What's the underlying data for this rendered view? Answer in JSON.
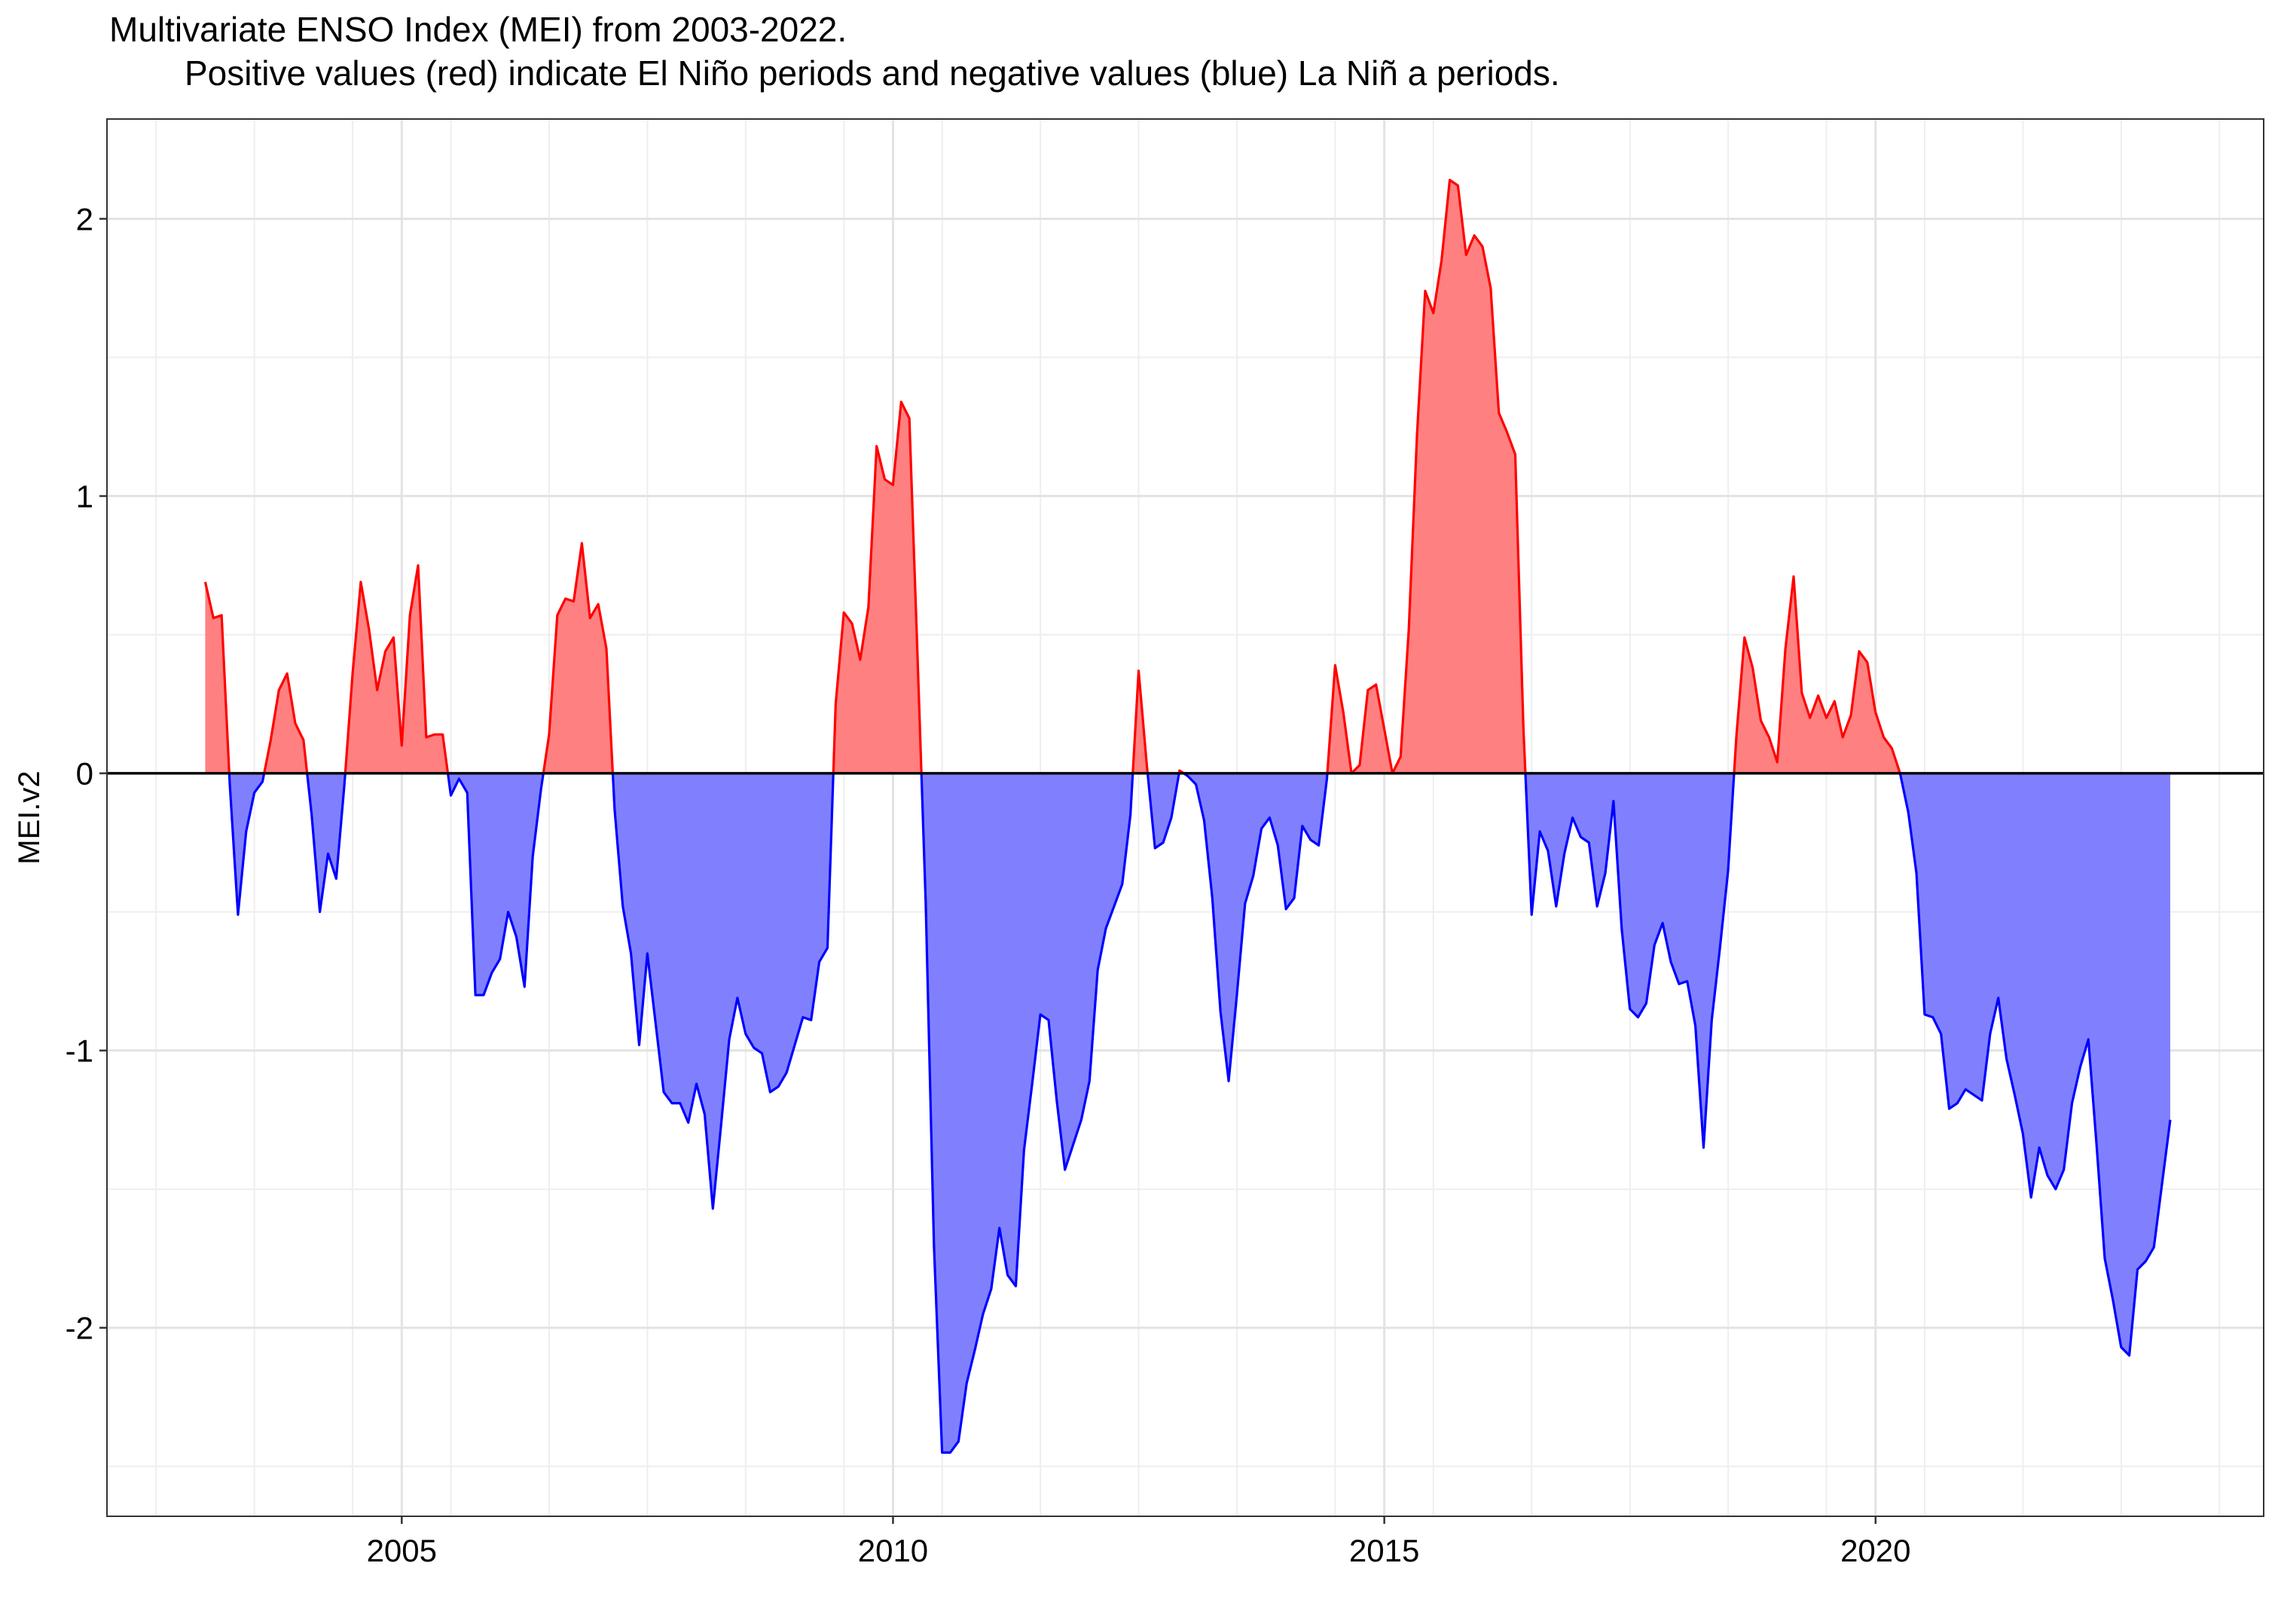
{
  "chart_data": {
    "type": "area",
    "title": "Multivariate ENSO Index (MEI) from 2003-2022.",
    "subtitle": "Positive values (red) indicate El Niño periods and negative values (blue) La Niñ a periods.",
    "xlabel": "",
    "ylabel": "MEI.v2",
    "xlim": [
      2002.0,
      2023.95
    ],
    "ylim": [
      -2.68,
      2.36
    ],
    "x_ticks": [
      2005,
      2010,
      2015,
      2020
    ],
    "x_tick_labels": [
      "2005",
      "2010",
      "2015",
      "2020"
    ],
    "y_ticks": [
      -2,
      -1,
      0,
      1,
      2
    ],
    "y_tick_labels": [
      "-2",
      "-1",
      "0",
      "1",
      "2"
    ],
    "grid": true,
    "legend": "none",
    "colors": {
      "positive_fill": "#ff8080",
      "positive_line": "#ff0000",
      "negative_fill": "#8080ff",
      "negative_line": "#0000ff",
      "zero_line": "#000000"
    },
    "x_start": 2003.0,
    "x_step": 0.08333,
    "series": [
      {
        "name": "MEI.v2",
        "values": [
          0.69,
          0.56,
          0.57,
          -0.04,
          -0.51,
          -0.21,
          -0.07,
          -0.03,
          0.12,
          0.3,
          0.36,
          0.18,
          0.12,
          -0.15,
          -0.5,
          -0.29,
          -0.38,
          -0.04,
          0.36,
          0.69,
          0.52,
          0.3,
          0.44,
          0.49,
          0.1,
          0.57,
          0.75,
          0.13,
          0.14,
          0.14,
          -0.08,
          -0.02,
          -0.07,
          -0.8,
          -0.8,
          -0.72,
          -0.67,
          -0.5,
          -0.59,
          -0.77,
          -0.3,
          -0.06,
          0.14,
          0.57,
          0.63,
          0.62,
          0.83,
          0.56,
          0.61,
          0.45,
          -0.13,
          -0.48,
          -0.65,
          -0.98,
          -0.65,
          -0.9,
          -1.15,
          -1.19,
          -1.19,
          -1.26,
          -1.12,
          -1.23,
          -1.57,
          -1.27,
          -0.96,
          -0.81,
          -0.94,
          -0.99,
          -1.01,
          -1.15,
          -1.13,
          -1.08,
          -0.98,
          -0.88,
          -0.89,
          -0.68,
          -0.63,
          0.25,
          0.58,
          0.54,
          0.41,
          0.6,
          1.18,
          1.06,
          1.04,
          1.34,
          1.28,
          0.42,
          -0.47,
          -1.7,
          -2.45,
          -2.45,
          -2.41,
          -2.2,
          -2.08,
          -1.95,
          -1.86,
          -1.64,
          -1.81,
          -1.85,
          -1.36,
          -1.12,
          -0.87,
          -0.89,
          -1.18,
          -1.43,
          -1.34,
          -1.25,
          -1.11,
          -0.71,
          -0.56,
          -0.48,
          -0.4,
          -0.15,
          0.37,
          0.03,
          -0.27,
          -0.25,
          -0.16,
          0.01,
          -0.01,
          -0.04,
          -0.17,
          -0.45,
          -0.86,
          -1.11,
          -0.8,
          -0.47,
          -0.37,
          -0.2,
          -0.16,
          -0.26,
          -0.49,
          -0.45,
          -0.19,
          -0.24,
          -0.26,
          -0.02,
          0.39,
          0.22,
          0.0,
          0.03,
          0.3,
          0.32,
          0.16,
          0.0,
          0.06,
          0.52,
          1.22,
          1.74,
          1.66,
          1.85,
          2.14,
          2.12,
          1.87,
          1.94,
          1.9,
          1.75,
          1.3,
          1.23,
          1.15,
          0.16,
          -0.51,
          -0.21,
          -0.28,
          -0.48,
          -0.29,
          -0.16,
          -0.23,
          -0.25,
          -0.48,
          -0.36,
          -0.1,
          -0.56,
          -0.85,
          -0.88,
          -0.83,
          -0.62,
          -0.54,
          -0.68,
          -0.76,
          -0.75,
          -0.91,
          -1.35,
          -0.89,
          -0.63,
          -0.35,
          0.13,
          0.49,
          0.38,
          0.19,
          0.13,
          0.04,
          0.45,
          0.71,
          0.29,
          0.2,
          0.28,
          0.2,
          0.26,
          0.13,
          0.21,
          0.44,
          0.4,
          0.22,
          0.13,
          0.09,
          0.0,
          -0.14,
          -0.36,
          -0.87,
          -0.88,
          -0.94,
          -1.21,
          -1.19,
          -1.14,
          -1.16,
          -1.18,
          -0.94,
          -0.81,
          -1.03,
          -1.16,
          -1.3,
          -1.53,
          -1.35,
          -1.45,
          -1.5,
          -1.43,
          -1.19,
          -1.06,
          -0.96,
          -1.34,
          -1.75,
          -1.9,
          -2.07,
          -2.1,
          -1.79,
          -1.76,
          -1.71,
          -1.48,
          -1.25
        ]
      }
    ]
  }
}
